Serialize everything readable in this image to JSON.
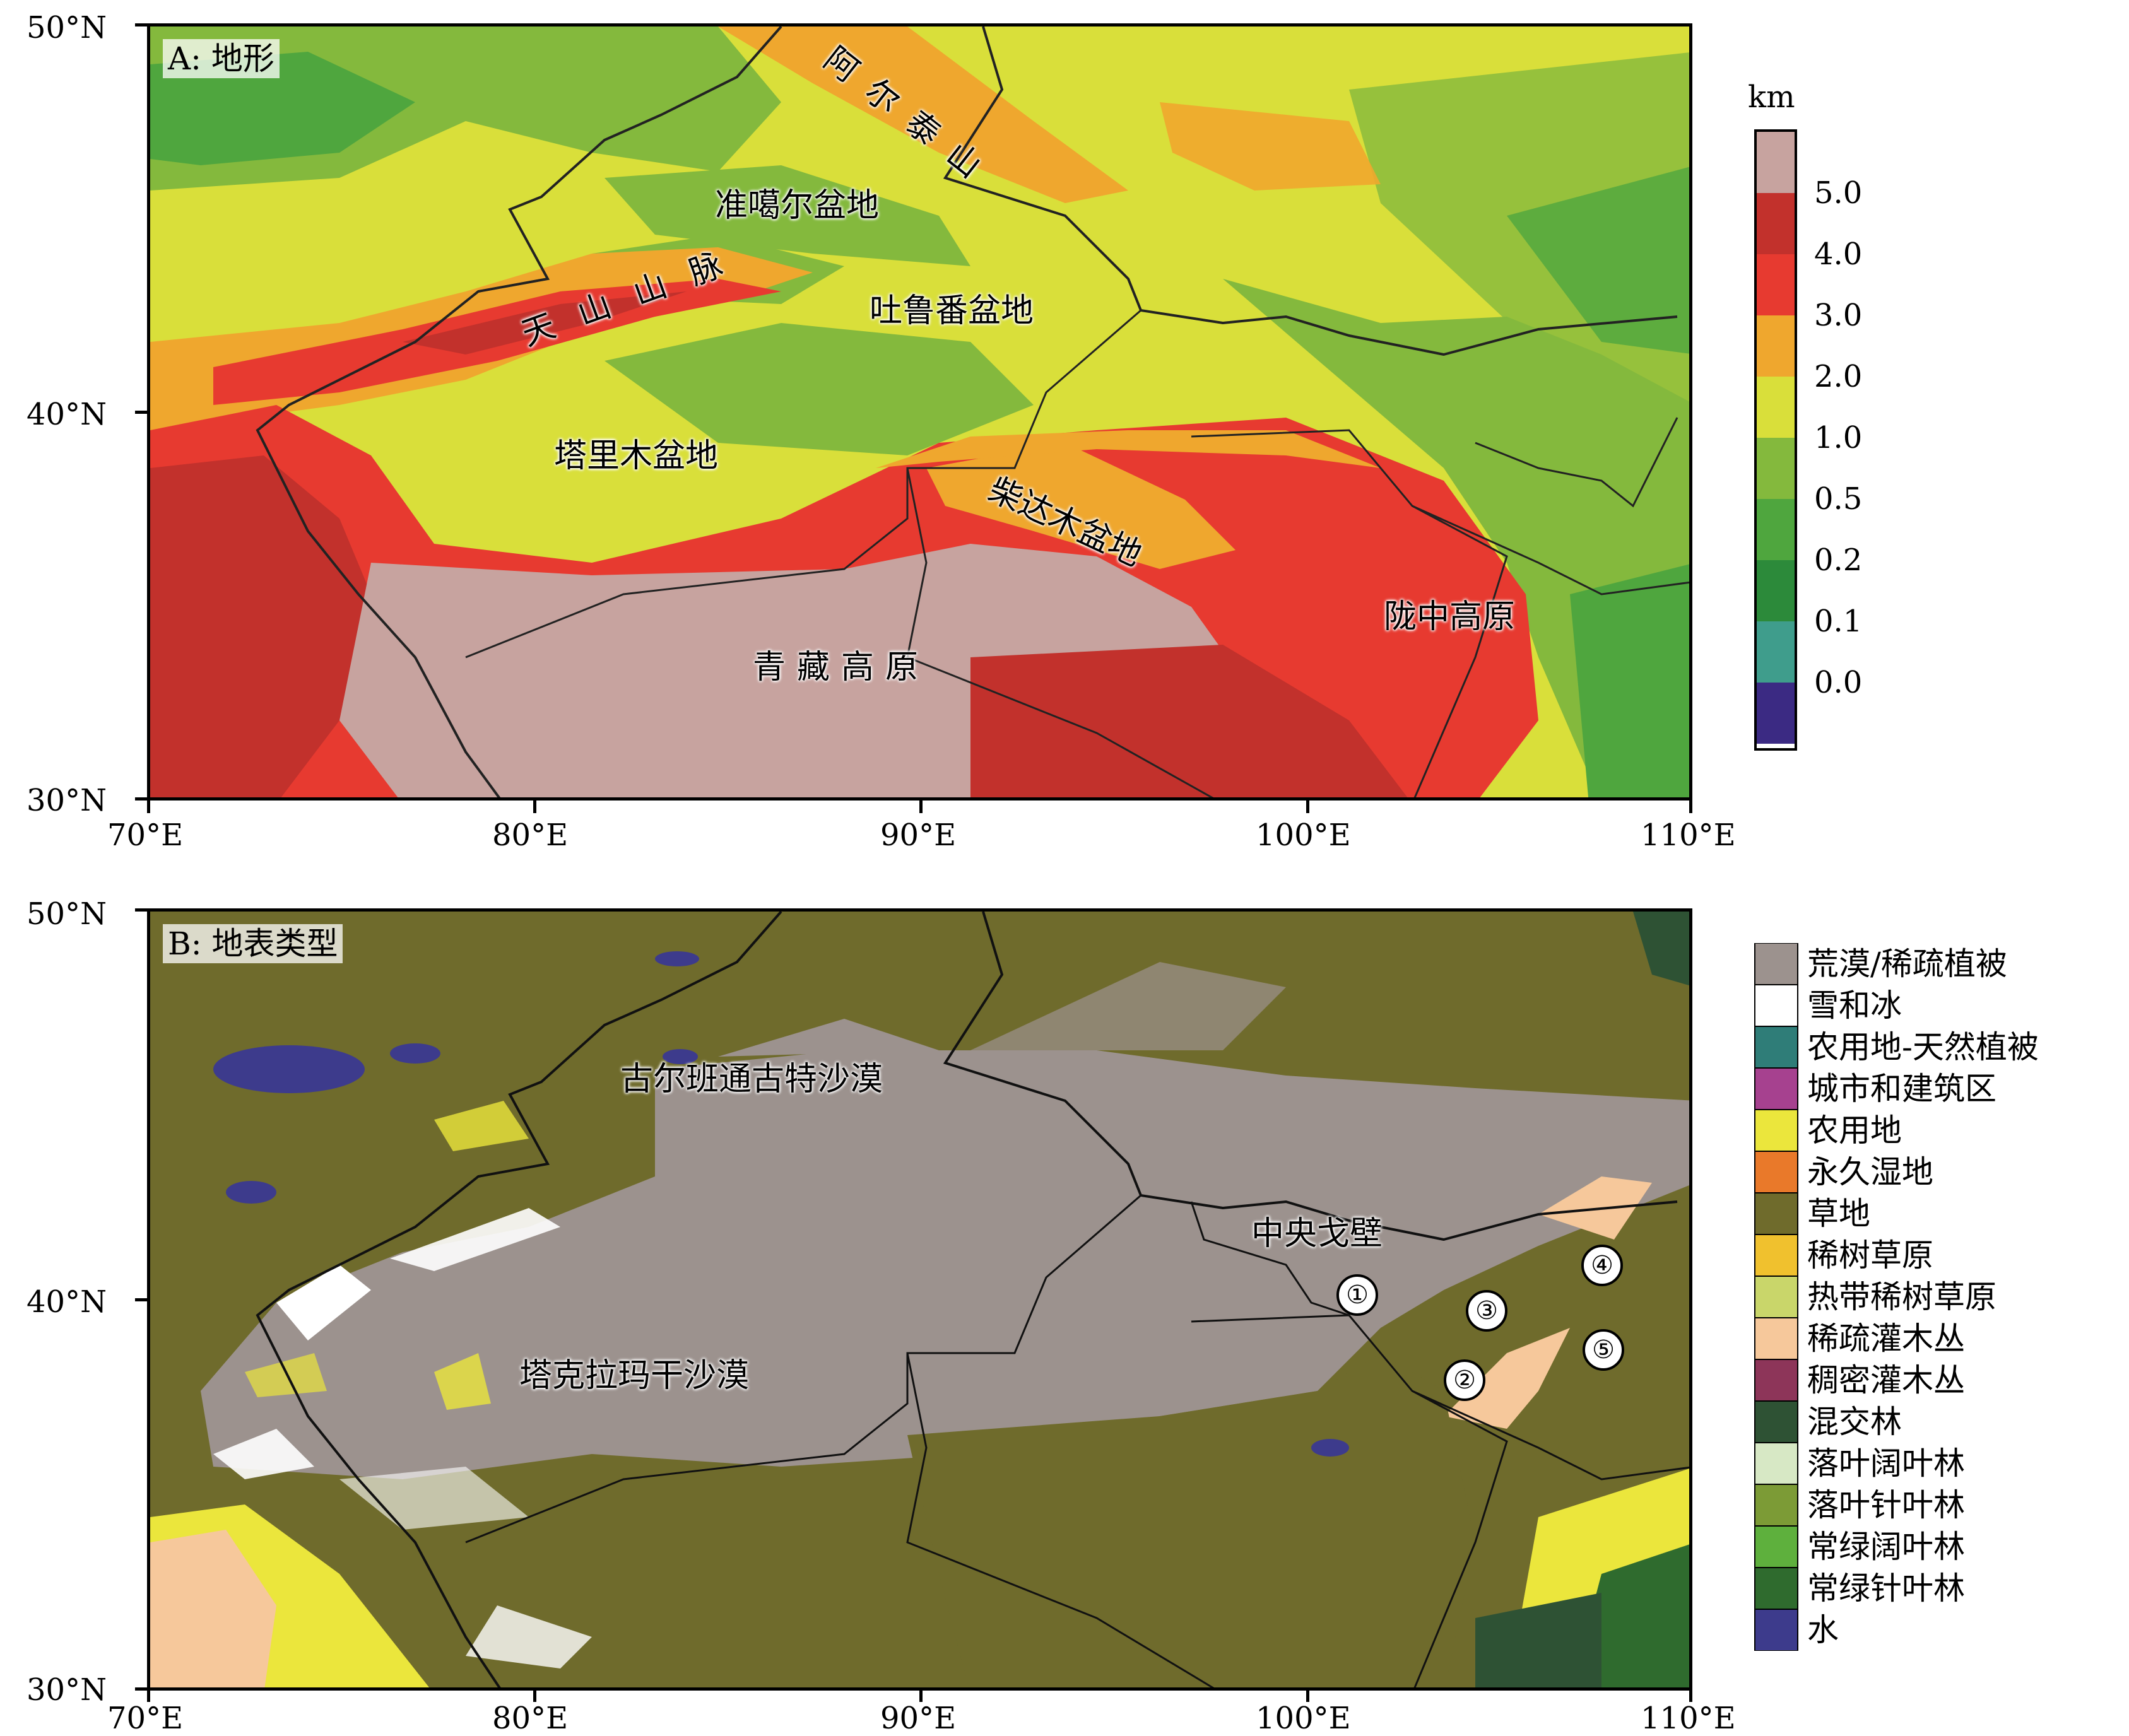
{
  "panel_a": {
    "label": "A: 地形",
    "colorbar_unit": "km",
    "colorbar_ticks": [
      "5.0",
      "4.0",
      "3.0",
      "2.0",
      "1.0",
      "0.5",
      "0.2",
      "0.1",
      "0.0"
    ],
    "colorbar_colors": [
      "#c7a39f",
      "#c2312c",
      "#e73a30",
      "#efa72e",
      "#d9df3a",
      "#84b93d",
      "#4fa63e",
      "#2c8a3a",
      "#3f9d8c",
      "#3b2a83"
    ],
    "places": {
      "altai": "阿尔泰山",
      "junggar": "准噶尔盆地",
      "tianshan": "天山山脉",
      "turpan": "吐鲁番盆地",
      "tarim": "塔里木盆地",
      "qaidam": "柴达木盆地",
      "tibet": "青藏高原",
      "longzhong": "陇中高原"
    }
  },
  "panel_b": {
    "label": "B: 地表类型",
    "places": {
      "gurbantunggut": "古尔班通古特沙漠",
      "gobi": "中央戈壁",
      "taklimakan": "塔克拉玛干沙漠"
    },
    "sites": [
      "①",
      "②",
      "③",
      "④",
      "⑤"
    ],
    "legend": [
      {
        "label": "荒漠/稀疏植被",
        "color": "#9c928e"
      },
      {
        "label": "雪和冰",
        "color": "#ffffff"
      },
      {
        "label": "农用地-天然植被",
        "color": "#2f7d78"
      },
      {
        "label": "城市和建筑区",
        "color": "#a6418f"
      },
      {
        "label": "农用地",
        "color": "#ebe63c"
      },
      {
        "label": "永久湿地",
        "color": "#e9792a"
      },
      {
        "label": "草地",
        "color": "#6f6b2c"
      },
      {
        "label": "稀树草原",
        "color": "#f0c12e"
      },
      {
        "label": "热带稀树草原",
        "color": "#c9d66a"
      },
      {
        "label": "稀疏灌木丛",
        "color": "#f6c89b"
      },
      {
        "label": "稠密灌木丛",
        "color": "#8d3559"
      },
      {
        "label": "混交林",
        "color": "#2e5234"
      },
      {
        "label": "落叶阔叶林",
        "color": "#d7e8c5"
      },
      {
        "label": "落叶针叶林",
        "color": "#7c9b36"
      },
      {
        "label": "常绿阔叶林",
        "color": "#5eb03d"
      },
      {
        "label": "常绿针叶林",
        "color": "#2f6b2e"
      },
      {
        "label": "水",
        "color": "#3d3b8c"
      }
    ]
  },
  "axes": {
    "lat_ticks": [
      "50°N",
      "40°N",
      "30°N"
    ],
    "lon_ticks": [
      "70°E",
      "80°E",
      "90°E",
      "100°E",
      "110°E"
    ]
  }
}
